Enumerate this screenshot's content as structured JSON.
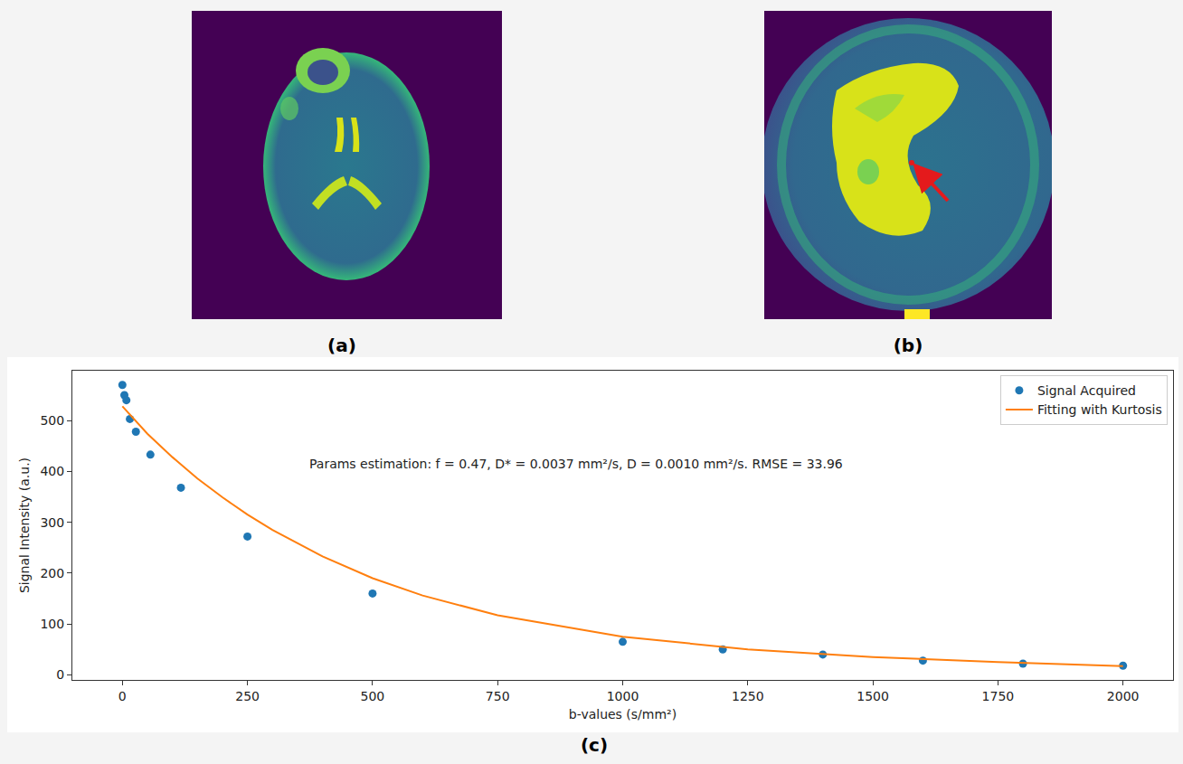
{
  "panel_labels": [
    "(a)",
    "(b)",
    "(c)"
  ],
  "chart_data": {
    "type": "scatter",
    "xlabel": "b-values (s/mm²)",
    "ylabel": "Signal Intensity (a.u.)",
    "annotation": "Params estimation: f = 0.47, D* = 0.0037 mm²/s, D = 0.0010 mm²/s. RMSE = 33.96",
    "xlim": [
      -100,
      2100
    ],
    "xticks": [
      0,
      250,
      500,
      750,
      1000,
      1250,
      1500,
      1750,
      2000
    ],
    "ylim": [
      -10,
      598
    ],
    "yticks": [
      0,
      100,
      200,
      300,
      400,
      500
    ],
    "grid": false,
    "legend": "upper right",
    "series": [
      {
        "name": "Signal Acquired",
        "type": "scatter",
        "marker": "circle",
        "color": "#1f77b4",
        "x": [
          0,
          4,
          8,
          15,
          27,
          56,
          117,
          250,
          500,
          1000,
          1200,
          1400,
          1600,
          1800,
          2000
        ],
        "values": [
          570,
          550,
          540,
          503,
          478,
          433,
          368,
          272,
          160,
          65,
          50,
          40,
          28,
          22,
          18
        ]
      },
      {
        "name": "Fitting with Kurtosis",
        "type": "line",
        "line_style": "solid",
        "color": "#ff7f0e",
        "x": [
          0,
          25,
          50,
          100,
          150,
          200,
          250,
          300,
          400,
          500,
          600,
          750,
          1000,
          1250,
          1500,
          1750,
          2000
        ],
        "values": [
          528,
          500,
          474,
          428,
          386,
          349,
          315,
          285,
          233,
          190,
          156,
          117,
          75,
          50,
          35,
          25,
          17
        ]
      }
    ]
  }
}
